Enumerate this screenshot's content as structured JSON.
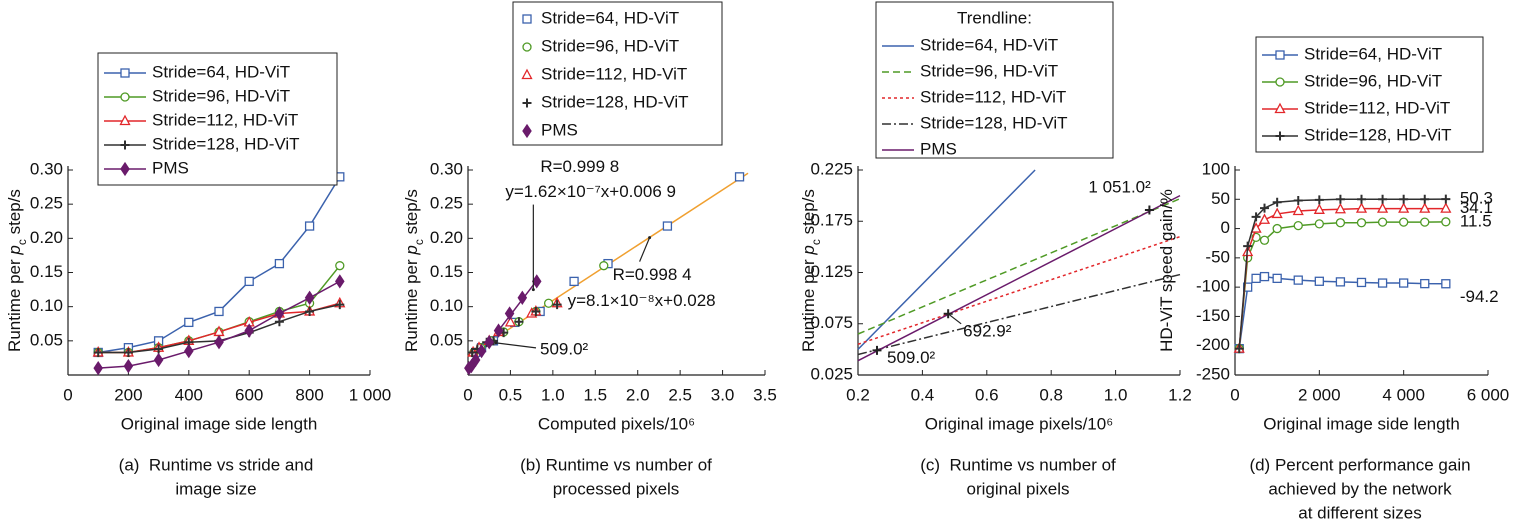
{
  "chart_data": [
    {
      "type": "line",
      "ylabel": [
        {
          "text": "Runtime per "
        },
        {
          "text": "p",
          "style": "italic"
        },
        {
          "text": "c",
          "style": "sub"
        },
        {
          "text": " step/s"
        }
      ],
      "xlabel": "Original image side length",
      "caption": [
        "(a)  Runtime vs stride and",
        "image size"
      ],
      "xlim": [
        0,
        1000
      ],
      "xticks": [
        0,
        200,
        400,
        600,
        800,
        {
          "value": 1000,
          "label": "1 000"
        }
      ],
      "ylim": [
        0,
        0.3
      ],
      "yticks": [
        0.05,
        {
          "value": 0.1,
          "label": "0.10"
        },
        0.15,
        {
          "value": 0.2,
          "label": "0.20"
        },
        0.25,
        {
          "value": 0.3,
          "label": "0.30"
        }
      ],
      "x": [
        100,
        200,
        300,
        400,
        500,
        600,
        700,
        800,
        900
      ],
      "series": [
        {
          "name": "Stride=64, HD-ViT",
          "color": "#3b62ad",
          "marker": "square",
          "values": [
            0.033,
            0.04,
            0.05,
            0.077,
            0.093,
            0.137,
            0.163,
            0.218,
            0.29
          ]
        },
        {
          "name": "Stride=96, HD-ViT",
          "color": "#4f9a25",
          "marker": "circle",
          "values": [
            0.033,
            0.033,
            0.04,
            0.05,
            0.063,
            0.078,
            0.093,
            0.105,
            0.16
          ]
        },
        {
          "name": "Stride=112, HD-ViT",
          "color": "#e2262a",
          "marker": "triangle",
          "values": [
            0.033,
            0.033,
            0.04,
            0.05,
            0.063,
            0.077,
            0.09,
            0.093,
            0.105
          ]
        },
        {
          "name": "Stride=128, HD-ViT",
          "color": "#303030",
          "marker": "plus",
          "values": [
            0.033,
            0.033,
            0.038,
            0.048,
            0.05,
            0.062,
            0.078,
            0.093,
            0.103
          ]
        },
        {
          "name": "PMS",
          "color": "#6a1b6b",
          "marker": "diamond",
          "values": [
            0.01,
            0.013,
            0.022,
            0.035,
            0.048,
            0.065,
            0.09,
            0.113,
            0.137
          ]
        }
      ]
    },
    {
      "type": "scatter",
      "ylabel": [
        {
          "text": "Runtime per "
        },
        {
          "text": "p",
          "style": "italic"
        },
        {
          "text": "c",
          "style": "sub"
        },
        {
          "text": " step/s"
        }
      ],
      "xlabel": "Computed pixels/10⁶",
      "caption": [
        "(b) Runtime vs number of",
        "processed pixels"
      ],
      "xlim": [
        0,
        3.5
      ],
      "xticks": [
        0,
        0.5,
        {
          "value": 1,
          "label": "1.0"
        },
        1.5,
        {
          "value": 2,
          "label": "2.0"
        },
        2.5,
        {
          "value": 3,
          "label": "3.0"
        },
        3.5
      ],
      "ylim": [
        0,
        0.3
      ],
      "yticks": [
        0.05,
        {
          "value": 0.1,
          "label": "0.10"
        },
        0.15,
        {
          "value": 0.2,
          "label": "0.20"
        },
        0.25,
        {
          "value": 0.3,
          "label": "0.30"
        }
      ],
      "series": [
        {
          "name": "Stride=64, HD-ViT",
          "color": "#3b62ad",
          "marker": "square",
          "x": [
            0.09,
            0.16,
            0.3,
            0.55,
            0.85,
            1.25,
            1.65,
            2.35,
            3.2
          ],
          "values": [
            0.033,
            0.04,
            0.05,
            0.077,
            0.093,
            0.137,
            0.163,
            0.218,
            0.29
          ]
        },
        {
          "name": "Stride=96, HD-ViT",
          "color": "#4f9a25",
          "marker": "circle",
          "x": [
            0.07,
            0.07,
            0.15,
            0.27,
            0.42,
            0.6,
            0.8,
            0.95,
            1.6
          ],
          "values": [
            0.033,
            0.033,
            0.04,
            0.05,
            0.063,
            0.078,
            0.093,
            0.105,
            0.16
          ]
        },
        {
          "name": "Stride=112, HD-ViT",
          "color": "#e2262a",
          "marker": "triangle",
          "x": [
            0.06,
            0.06,
            0.13,
            0.25,
            0.36,
            0.5,
            0.75,
            0.8,
            1.05
          ],
          "values": [
            0.033,
            0.033,
            0.04,
            0.05,
            0.063,
            0.077,
            0.09,
            0.093,
            0.105
          ]
        },
        {
          "name": "Stride=128, HD-ViT",
          "color": "#303030",
          "marker": "plus",
          "x": [
            0.05,
            0.05,
            0.11,
            0.22,
            0.3,
            0.42,
            0.6,
            0.8,
            1.05
          ],
          "values": [
            0.033,
            0.033,
            0.038,
            0.048,
            0.05,
            0.062,
            0.078,
            0.093,
            0.103
          ]
        },
        {
          "name": "PMS",
          "color": "#6a1b6b",
          "marker": "diamond",
          "x": [
            0.01,
            0.04,
            0.09,
            0.16,
            0.25,
            0.36,
            0.49,
            0.64,
            0.81
          ],
          "values": [
            0.01,
            0.013,
            0.022,
            0.035,
            0.048,
            0.065,
            0.09,
            0.113,
            0.137
          ]
        }
      ],
      "trendlines": [
        {
          "color": "#f0a030",
          "x": [
            0,
            3.3
          ],
          "values": [
            0.028,
            0.2953
          ]
        },
        {
          "color": "#6a1b6b",
          "x": [
            0,
            0.8
          ],
          "values": [
            0.0069,
            0.1365
          ]
        }
      ],
      "annotations": [
        {
          "text": [
            "R=0.999 8",
            "y=1.62×10⁻⁷x+0.006 9"
          ],
          "x": 0.77,
          "y": 0.125
        },
        {
          "text": [
            "R=0.998 4",
            "y=8.1×10⁻⁸x+0.028"
          ],
          "x": 2.14,
          "y": 0.201
        },
        {
          "text": [
            "509.0²"
          ],
          "x": 0.33,
          "y": 0.047
        }
      ]
    },
    {
      "type": "line",
      "ylabel": [
        {
          "text": "Runtime per "
        },
        {
          "text": "p",
          "style": "italic"
        },
        {
          "text": "c",
          "style": "sub"
        },
        {
          "text": " step/s"
        }
      ],
      "xlabel": "Original image pixels/10⁶",
      "caption": [
        "(c)  Runtime vs number of",
        "original pixels"
      ],
      "legend_title": "Trendline:",
      "xlim": [
        0.2,
        1.2
      ],
      "xticks": [
        0.2,
        0.4,
        0.6,
        0.8,
        {
          "value": 1,
          "label": "1.0"
        },
        1.2
      ],
      "ylim": [
        0.025,
        0.225
      ],
      "yticks": [
        0.025,
        0.075,
        0.125,
        0.175,
        0.225
      ],
      "series": [
        {
          "name": "Stride=64, HD-ViT",
          "color": "#3b62ad",
          "dash": "solid",
          "x": [
            0.2,
            0.75
          ],
          "values": [
            0.05,
            0.225
          ]
        },
        {
          "name": "Stride=96, HD-ViT",
          "color": "#4f9a25",
          "dash": "dashed",
          "x": [
            0.2,
            1.2
          ],
          "values": [
            0.065,
            0.197
          ]
        },
        {
          "name": "Stride=112, HD-ViT",
          "color": "#e2262a",
          "dash": "dotted",
          "x": [
            0.2,
            1.2
          ],
          "values": [
            0.055,
            0.16
          ]
        },
        {
          "name": "Stride=128, HD-ViT",
          "color": "#303030",
          "dash": "dashdot",
          "x": [
            0.2,
            1.2
          ],
          "values": [
            0.045,
            0.123
          ]
        },
        {
          "name": "PMS",
          "color": "#6a1b6b",
          "dash": "solid",
          "x": [
            0.2,
            1.2
          ],
          "values": [
            0.039,
            0.2
          ]
        }
      ],
      "annotations": [
        {
          "text": [
            "509.0²"
          ],
          "x": 0.259,
          "y": 0.049
        },
        {
          "text": [
            "692.9²"
          ],
          "x": 0.48,
          "y": 0.0847
        },
        {
          "text": [
            "1 051.0²"
          ],
          "x": 1.105,
          "y": 0.186
        }
      ]
    },
    {
      "type": "line",
      "ylabel": [
        {
          "text": "HD-ViT speed gain/%"
        }
      ],
      "xlabel": "Original image side length",
      "caption": [
        "(d) Percent performance gain",
        "achieved by the network",
        "at different sizes"
      ],
      "label_last": true,
      "xlim": [
        0,
        6000
      ],
      "xticks": [
        0,
        {
          "value": 2000,
          "label": "2 000"
        },
        {
          "value": 4000,
          "label": "4 000"
        },
        {
          "value": 6000,
          "label": "6 000"
        }
      ],
      "ylim": [
        -250,
        100
      ],
      "yticks": [
        -250,
        -200,
        -150,
        -100,
        -50,
        0,
        50,
        100
      ],
      "x": [
        100,
        300,
        500,
        700,
        1000,
        1500,
        2000,
        2500,
        3000,
        3500,
        4000,
        4500,
        5000
      ],
      "series": [
        {
          "name": "Stride=64, HD-ViT",
          "color": "#3b62ad",
          "marker": "square",
          "values": [
            -205,
            -100,
            -85,
            -82,
            -85,
            -88,
            -90,
            -91,
            -92,
            -93,
            -93,
            -94,
            -94.2
          ]
        },
        {
          "name": "Stride=96, HD-ViT",
          "color": "#4f9a25",
          "marker": "circle",
          "values": [
            -205,
            -50,
            -15,
            -20,
            0,
            5,
            8,
            10,
            10,
            11,
            11,
            11,
            11.5
          ]
        },
        {
          "name": "Stride=112, HD-ViT",
          "color": "#e2262a",
          "marker": "triangle",
          "values": [
            -205,
            -40,
            0,
            15,
            25,
            30,
            32,
            33,
            34,
            34,
            34,
            34,
            34.1
          ]
        },
        {
          "name": "Stride=128, HD-ViT",
          "color": "#303030",
          "marker": "plus",
          "values": [
            -205,
            -30,
            20,
            35,
            45,
            48,
            49,
            50,
            50,
            50,
            50,
            50,
            50.3
          ]
        }
      ]
    }
  ]
}
